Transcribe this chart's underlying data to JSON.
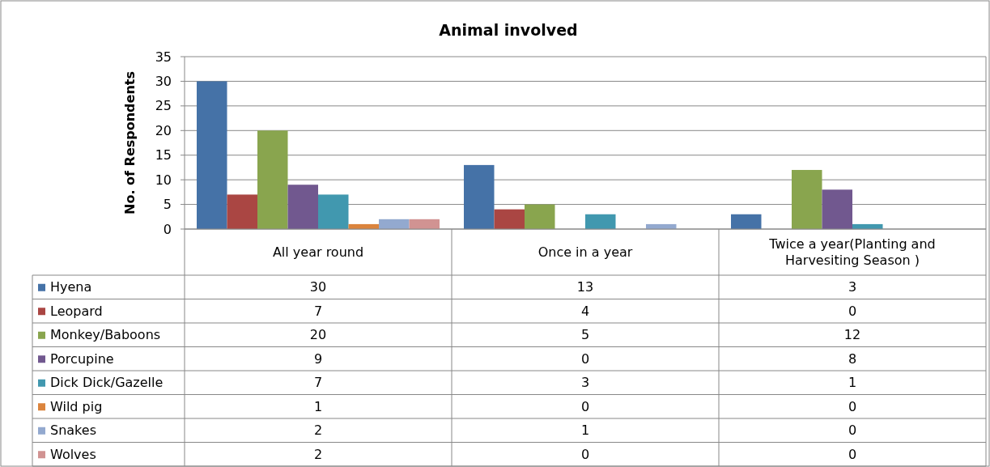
{
  "chart_data": {
    "type": "bar",
    "title": "Animal involved",
    "ylabel": "No. of Respondents",
    "categories": [
      "All year round",
      "Once in a year",
      "Twice a year(Planting and Harvesiting Season )"
    ],
    "series": [
      {
        "name": "Hyena",
        "color": "#4572a7",
        "values": [
          30,
          13,
          3
        ]
      },
      {
        "name": "Leopard",
        "color": "#aa4643",
        "values": [
          7,
          4,
          0
        ]
      },
      {
        "name": "Monkey/Baboons",
        "color": "#89a54e",
        "values": [
          20,
          5,
          12
        ]
      },
      {
        "name": "Porcupine",
        "color": "#71588f",
        "values": [
          9,
          0,
          8
        ]
      },
      {
        "name": "Dick Dick/Gazelle",
        "color": "#4198af",
        "values": [
          7,
          3,
          1
        ]
      },
      {
        "name": "Wild pig",
        "color": "#db843d",
        "values": [
          1,
          0,
          0
        ]
      },
      {
        "name": "Snakes",
        "color": "#93a9cf",
        "values": [
          2,
          1,
          0
        ]
      },
      {
        "name": "Wolves",
        "color": "#d19392",
        "values": [
          2,
          0,
          0
        ]
      }
    ],
    "ylim": [
      0,
      35
    ],
    "yticks": [
      0,
      5,
      10,
      15,
      20,
      25,
      30,
      35
    ],
    "grid": "y",
    "legend": "bottom",
    "data_labels": true
  }
}
